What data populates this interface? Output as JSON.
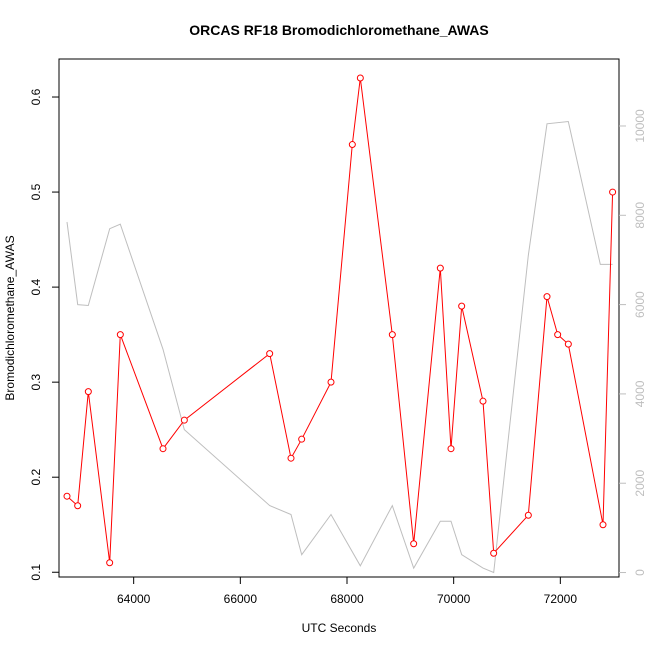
{
  "chart_data": {
    "type": "line",
    "title": "ORCAS RF18 Bromodichloromethane_AWAS",
    "xlabel": "UTC Seconds",
    "ylabel": "Bromodichloromethane_AWAS",
    "xlim": [
      62600,
      73100
    ],
    "ylim": [
      0.095,
      0.64
    ],
    "y2lim": [
      -100,
      11500
    ],
    "x_ticks": [
      64000,
      66000,
      68000,
      70000,
      72000
    ],
    "y_ticks": [
      0.1,
      0.2,
      0.3,
      0.4,
      0.5,
      0.6
    ],
    "y2_ticks": [
      0,
      2000,
      4000,
      6000,
      8000,
      10000
    ],
    "x_tick_labels": [
      "64000",
      "66000",
      "68000",
      "70000",
      "72000"
    ],
    "y_tick_labels": [
      "0.1",
      "0.2",
      "0.3",
      "0.4",
      "0.5",
      "0.6"
    ],
    "y2_tick_labels": [
      "0",
      "2000",
      "4000",
      "6000",
      "8000",
      "10000"
    ],
    "grid": false,
    "series": [
      {
        "axis": "left",
        "color": "#ff0000",
        "markers": "open-circle",
        "x": [
          62750,
          62950,
          63150,
          63550,
          63750,
          64550,
          64950,
          66550,
          66950,
          67150,
          67700,
          68100,
          68250,
          68850,
          69250,
          69750,
          69950,
          70150,
          70550,
          70750,
          71400,
          71750,
          71950,
          72150,
          72800,
          72980
        ],
        "y": [
          0.18,
          0.17,
          0.29,
          0.11,
          0.35,
          0.23,
          0.26,
          0.33,
          0.22,
          0.24,
          0.3,
          0.55,
          0.62,
          0.35,
          0.13,
          0.42,
          0.23,
          0.38,
          0.28,
          0.12,
          0.16,
          0.39,
          0.35,
          0.34,
          0.15,
          0.5
        ]
      },
      {
        "axis": "right",
        "color": "#bebebe",
        "markers": "none",
        "x": [
          62750,
          62950,
          63150,
          63550,
          63750,
          64550,
          64950,
          66550,
          66950,
          67150,
          67700,
          68250,
          68850,
          69250,
          69750,
          69950,
          70150,
          70550,
          70750,
          71400,
          71750,
          72150,
          72750,
          72980
        ],
        "y": [
          7850,
          6000,
          5980,
          7700,
          7800,
          5000,
          3200,
          1500,
          1300,
          400,
          1300,
          150,
          1500,
          100,
          1150,
          1150,
          400,
          100,
          0,
          7100,
          10050,
          10100,
          6900,
          6900
        ]
      }
    ]
  }
}
